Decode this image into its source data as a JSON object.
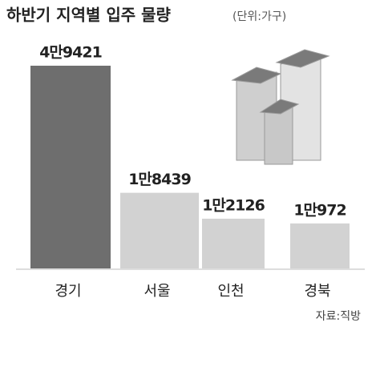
{
  "chart_data": {
    "type": "bar",
    "title": "하반기 지역별 입주 물량",
    "subtitle": "(단위:가구)",
    "categories": [
      "경기",
      "서울",
      "인천",
      "경북"
    ],
    "values": [
      49421,
      18439,
      12126,
      10972
    ],
    "value_labels": [
      "4만9421",
      "1만8439",
      "1만2126",
      "1만972"
    ],
    "colors": [
      "#6e6e6e",
      "#d2d2d2",
      "#d2d2d2",
      "#d2d2d2"
    ],
    "source": "자료:직방"
  }
}
